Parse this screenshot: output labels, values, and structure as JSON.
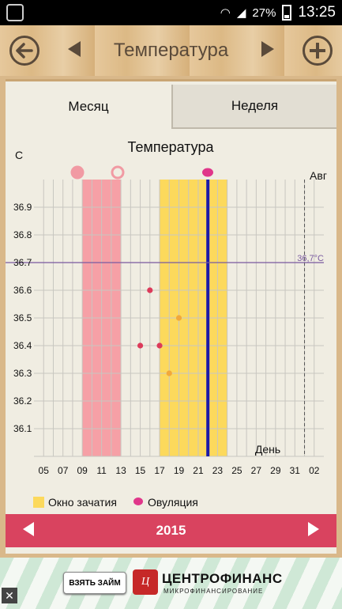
{
  "status_bar": {
    "battery": "27%",
    "time": "13:25"
  },
  "header": {
    "title": "Температура"
  },
  "tabs": [
    {
      "label": "Месяц",
      "selected": true
    },
    {
      "label": "Неделя",
      "selected": false
    }
  ],
  "legend": {
    "fertile_window": "Окно зачатия",
    "ovulation": "Овуляция"
  },
  "footer": {
    "year": "2015"
  },
  "ad": {
    "button_label": "ВЗЯТЬ ЗАЙМ",
    "brand": "ЦЕНТРОФИНАНС",
    "subtitle": "МИКРОФИНАНСИРОВАНИЕ",
    "logo_text": "Ц"
  },
  "colors": {
    "period": "#f6a0a6",
    "fertile": "#fcd95c",
    "ovulation_line": "#1a1aa8",
    "reference_line": "#7a5aa0",
    "point_red": "#dc3a5a",
    "point_orange": "#f2a83a",
    "bottom_bar": "#d9435f"
  },
  "chart_data": {
    "type": "scatter",
    "title": "Температура",
    "ylabel": "C",
    "xlabel": "День",
    "month_label": "Авг",
    "xlim": [
      4,
      34
    ],
    "ylim": [
      36.0,
      37.0
    ],
    "x_ticks": [
      "05",
      "07",
      "09",
      "11",
      "13",
      "15",
      "17",
      "19",
      "21",
      "23",
      "25",
      "27",
      "29",
      "31",
      "02"
    ],
    "y_ticks": [
      "36.9",
      "36.8",
      "36.7",
      "36.6",
      "36.5",
      "36.4",
      "36.3",
      "36.2",
      "36.1"
    ],
    "reference_line": {
      "value": 36.7,
      "label": "36,7°C"
    },
    "period_range": [
      9,
      13
    ],
    "fertile_range": [
      17,
      24
    ],
    "ovulation_day": 22,
    "month_boundary_day": 32,
    "points": [
      {
        "x": 15,
        "y": 36.4,
        "color": "red"
      },
      {
        "x": 16,
        "y": 36.6,
        "color": "red"
      },
      {
        "x": 17,
        "y": 36.4,
        "color": "red"
      },
      {
        "x": 18,
        "y": 36.3,
        "color": "orange"
      },
      {
        "x": 19,
        "y": 36.5,
        "color": "orange"
      }
    ]
  }
}
